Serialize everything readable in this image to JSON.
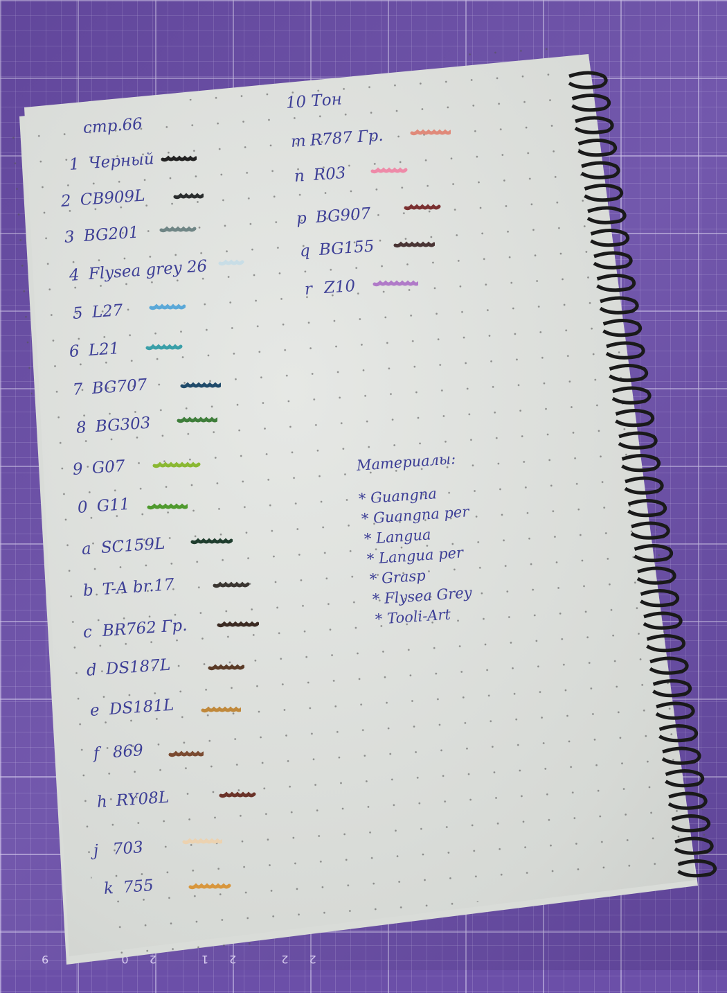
{
  "left_column": {
    "heading": "стр.66",
    "entries": [
      {
        "key": "1",
        "code": "Черный",
        "color": "#222222"
      },
      {
        "key": "2",
        "code": "CB909L",
        "color": "#2a2d2d"
      },
      {
        "key": "3",
        "code": "BG201",
        "color": "#6f8585"
      },
      {
        "key": "4",
        "code": "Flysea grey 26",
        "color": "#c8dde6"
      },
      {
        "key": "5",
        "code": "L27",
        "color": "#5aa8d8"
      },
      {
        "key": "6",
        "code": "L21",
        "color": "#3a9fa8"
      },
      {
        "key": "7",
        "code": "BG707",
        "color": "#1f4a6a"
      },
      {
        "key": "8",
        "code": "BG303",
        "color": "#3e7d3a"
      },
      {
        "key": "9",
        "code": "G07",
        "color": "#8ab832"
      },
      {
        "key": "0",
        "code": "G11",
        "color": "#4f9a2e"
      },
      {
        "key": "a",
        "code": "SC159L",
        "color": "#1f3d2e"
      },
      {
        "key": "b",
        "code": "T-A br.17",
        "color": "#3a3530"
      },
      {
        "key": "c",
        "code": "BR762 Гр.",
        "color": "#3b2a22"
      },
      {
        "key": "d",
        "code": "DS187L",
        "color": "#5a3a26"
      },
      {
        "key": "e",
        "code": "DS181L",
        "color": "#c0883a"
      },
      {
        "key": "f",
        "code": "869",
        "color": "#7a4a30"
      },
      {
        "key": "h",
        "code": "RY08L",
        "color": "#6a3228"
      },
      {
        "key": "j",
        "code": "703",
        "color": "#ecd2b0"
      },
      {
        "key": "k",
        "code": "755",
        "color": "#d8963c"
      }
    ]
  },
  "right_column": {
    "heading": "10 Тон",
    "entries": [
      {
        "key": "m",
        "code": "R787 Гр.",
        "color": "#e08a7a"
      },
      {
        "key": "n",
        "code": "R03",
        "color": "#ee8aa8"
      },
      {
        "key": "p",
        "code": "BG907",
        "color": "#7a3030"
      },
      {
        "key": "q",
        "code": "BG155",
        "color": "#4a3535"
      },
      {
        "key": "r",
        "code": "Z10",
        "color": "#b07ac8"
      }
    ]
  },
  "materials": {
    "heading": "Материалы:",
    "items": [
      "* Guangna",
      "* Guangna per",
      "* Langua",
      "* Langua per",
      "* Grasp",
      "* Flysea Grey",
      "* Tooli-Art"
    ]
  },
  "ruler_numbers": "22 21 20 19",
  "colors": {
    "ink": "#3d3f96",
    "mat": "#6b4fa8",
    "paper": "#e2e4e1",
    "spiral": "#1a1a1a"
  }
}
